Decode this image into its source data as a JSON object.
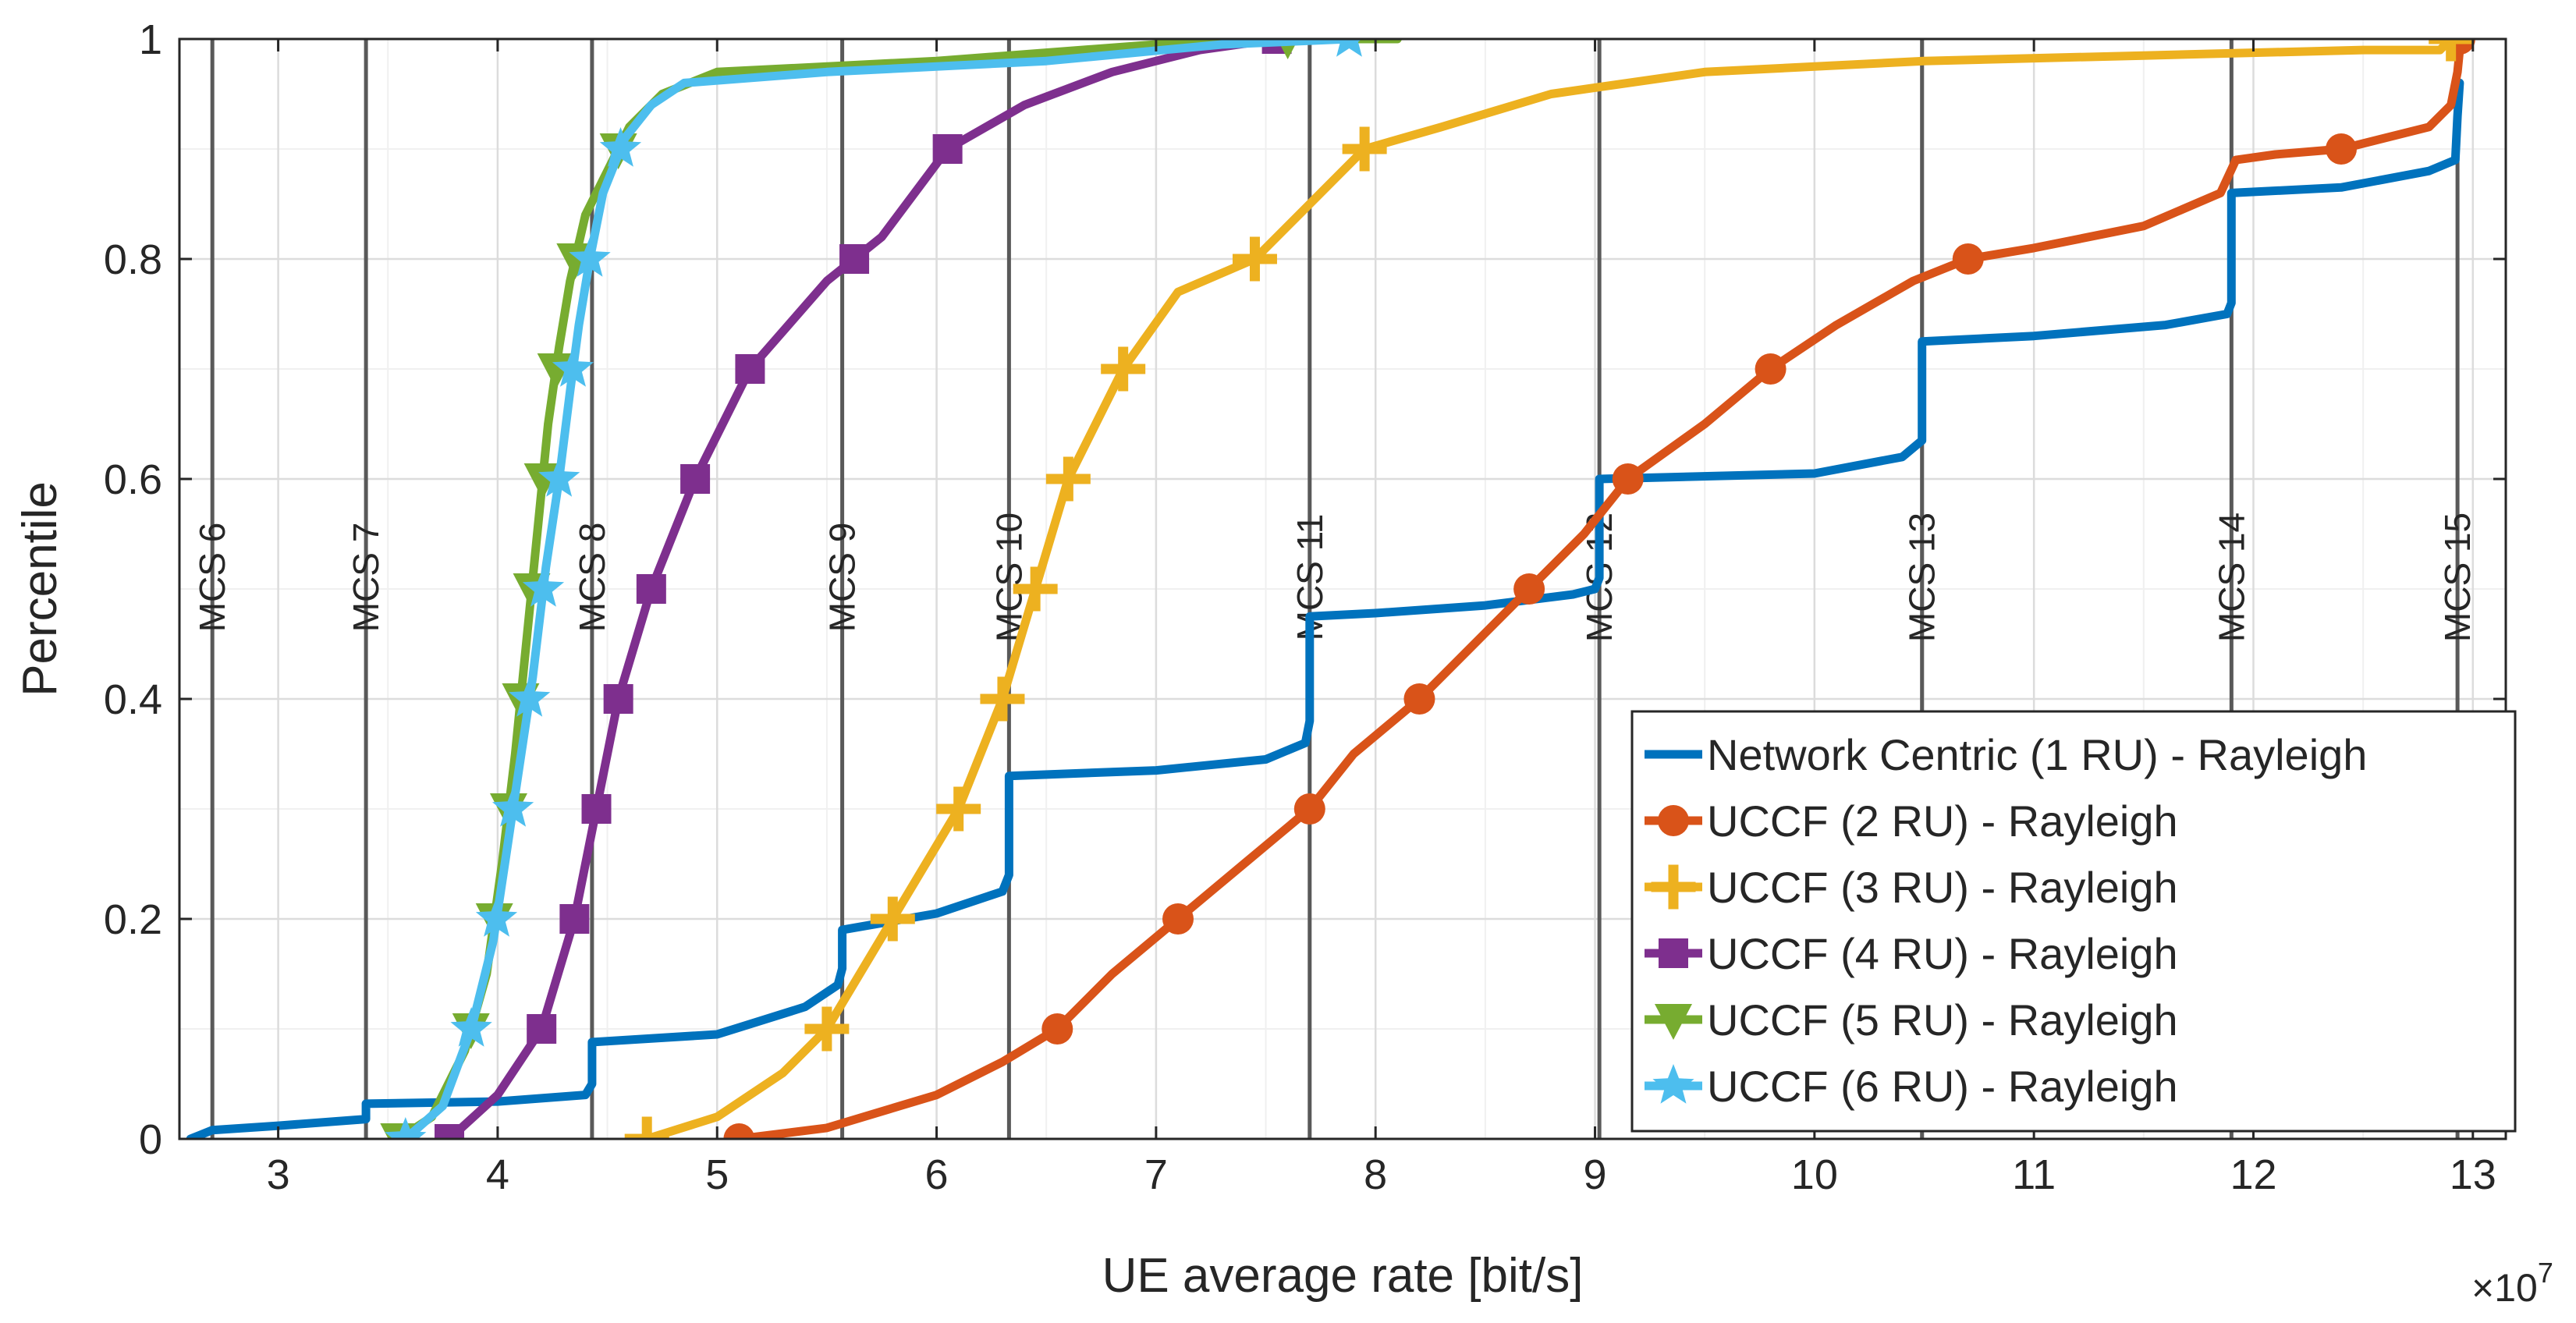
{
  "chart_data": {
    "type": "line",
    "title": "",
    "xlabel": "UE average rate [bit/s]",
    "ylabel": "Percentile",
    "x_exponent_label": "×10",
    "x_exponent": "7",
    "xlim": [
      2.55,
      13.15
    ],
    "ylim": [
      0,
      1
    ],
    "grid": true,
    "x_ticks": [
      3,
      4,
      5,
      6,
      7,
      8,
      9,
      10,
      11,
      12,
      13
    ],
    "x_tick_labels": [
      "3",
      "4",
      "5",
      "6",
      "7",
      "8",
      "9",
      "10",
      "11",
      "12",
      "13"
    ],
    "y_ticks": [
      0,
      0.2,
      0.4,
      0.6,
      0.8,
      1
    ],
    "y_tick_labels": [
      "0",
      "0.2",
      "0.4",
      "0.6",
      "0.8",
      "1"
    ],
    "mcs_lines": [
      {
        "label": "MCS 6",
        "x": 2.7
      },
      {
        "label": "MCS 7",
        "x": 3.4
      },
      {
        "label": "MCS 8",
        "x": 4.43
      },
      {
        "label": "MCS 9",
        "x": 5.57
      },
      {
        "label": "MCS 10",
        "x": 6.33
      },
      {
        "label": "MCS 11",
        "x": 7.7
      },
      {
        "label": "MCS 12",
        "x": 9.02
      },
      {
        "label": "MCS 13",
        "x": 10.49
      },
      {
        "label": "MCS 14",
        "x": 11.9
      },
      {
        "label": "MCS 15",
        "x": 12.93
      }
    ],
    "legend_position": "bottom-right",
    "series": [
      {
        "name": "Network Centric (1 RU) - Rayleigh",
        "color": "#0072BD",
        "marker": "none",
        "x": [
          2.6,
          2.7,
          3.0,
          3.4,
          3.4,
          4.0,
          4.4,
          4.43,
          4.43,
          5.0,
          5.4,
          5.55,
          5.57,
          5.57,
          6.0,
          6.3,
          6.33,
          6.33,
          7.0,
          7.5,
          7.68,
          7.7,
          7.7,
          8.0,
          8.5,
          8.9,
          9.0,
          9.02,
          9.02,
          10.0,
          10.4,
          10.49,
          10.49,
          11.0,
          11.6,
          11.88,
          11.9,
          11.9,
          12.4,
          12.8,
          12.92,
          12.93,
          12.94
        ],
        "y": [
          0.0,
          0.008,
          0.012,
          0.018,
          0.032,
          0.034,
          0.04,
          0.05,
          0.088,
          0.095,
          0.12,
          0.14,
          0.155,
          0.19,
          0.205,
          0.225,
          0.24,
          0.33,
          0.335,
          0.345,
          0.36,
          0.38,
          0.475,
          0.478,
          0.485,
          0.495,
          0.5,
          0.51,
          0.6,
          0.605,
          0.62,
          0.635,
          0.725,
          0.73,
          0.74,
          0.75,
          0.76,
          0.86,
          0.865,
          0.88,
          0.89,
          0.93,
          0.96
        ]
      },
      {
        "name": "UCCF (2 RU) - Rayleigh",
        "color": "#D95319",
        "marker": "circle",
        "x": [
          5.1,
          5.5,
          6.0,
          6.3,
          6.55,
          6.8,
          7.1,
          7.4,
          7.7,
          7.9,
          8.2,
          8.45,
          8.7,
          8.95,
          9.15,
          9.5,
          9.8,
          10.1,
          10.45,
          10.7,
          11.0,
          11.5,
          11.85,
          11.92,
          12.1,
          12.4,
          12.8,
          12.9,
          12.93,
          12.94
        ],
        "y": [
          0.0,
          0.01,
          0.04,
          0.07,
          0.1,
          0.15,
          0.2,
          0.25,
          0.3,
          0.35,
          0.4,
          0.45,
          0.5,
          0.55,
          0.6,
          0.65,
          0.7,
          0.74,
          0.78,
          0.8,
          0.81,
          0.83,
          0.86,
          0.89,
          0.895,
          0.9,
          0.92,
          0.94,
          0.97,
          0.99
        ]
      },
      {
        "name": "UCCF (3 RU) - Rayleigh",
        "color": "#EDB120",
        "marker": "plus",
        "x": [
          4.68,
          5.0,
          5.3,
          5.5,
          5.8,
          6.1,
          6.3,
          6.45,
          6.6,
          6.85,
          7.1,
          7.45,
          7.75,
          7.95,
          8.3,
          8.8,
          9.5,
          10.5,
          11.5,
          12.5,
          12.85,
          12.9,
          12.93
        ],
        "y": [
          0.0,
          0.02,
          0.06,
          0.1,
          0.2,
          0.3,
          0.4,
          0.5,
          0.6,
          0.7,
          0.77,
          0.8,
          0.86,
          0.9,
          0.92,
          0.95,
          0.97,
          0.98,
          0.985,
          0.99,
          0.99,
          1.0,
          1.0
        ]
      },
      {
        "name": "UCCF (4 RU) - Rayleigh",
        "color": "#7E2F8E",
        "marker": "square",
        "x": [
          3.78,
          4.0,
          4.2,
          4.35,
          4.45,
          4.55,
          4.7,
          4.9,
          5.15,
          5.5,
          5.75,
          6.05,
          6.4,
          6.8,
          7.2,
          7.55,
          7.85
        ],
        "y": [
          0.0,
          0.04,
          0.1,
          0.2,
          0.3,
          0.4,
          0.5,
          0.6,
          0.7,
          0.78,
          0.82,
          0.9,
          0.94,
          0.97,
          0.99,
          1.0,
          1.0
        ]
      },
      {
        "name": "UCCF (5 RU) - Rayleigh",
        "color": "#77AC30",
        "marker": "triangle-down",
        "x": [
          3.55,
          3.7,
          3.85,
          3.95,
          4.02,
          4.08,
          4.13,
          4.18,
          4.23,
          4.28,
          4.33,
          4.4,
          4.5,
          4.6,
          4.75,
          5.0,
          6.0,
          7.0,
          7.6,
          8.1
        ],
        "y": [
          0.0,
          0.02,
          0.08,
          0.15,
          0.25,
          0.35,
          0.45,
          0.55,
          0.65,
          0.72,
          0.78,
          0.84,
          0.88,
          0.92,
          0.95,
          0.97,
          0.98,
          0.995,
          1.0,
          1.0
        ]
      },
      {
        "name": "UCCF (6 RU) - Rayleigh",
        "color": "#4DBEEE",
        "marker": "star",
        "x": [
          3.58,
          3.75,
          3.88,
          3.98,
          4.04,
          4.1,
          4.16,
          4.22,
          4.28,
          4.33,
          4.37,
          4.42,
          4.48,
          4.58,
          4.7,
          4.85,
          5.5,
          6.5,
          7.3,
          7.88
        ],
        "y": [
          0.0,
          0.03,
          0.1,
          0.18,
          0.26,
          0.34,
          0.42,
          0.52,
          0.6,
          0.68,
          0.74,
          0.8,
          0.86,
          0.91,
          0.94,
          0.96,
          0.97,
          0.98,
          0.995,
          1.0
        ]
      }
    ]
  }
}
